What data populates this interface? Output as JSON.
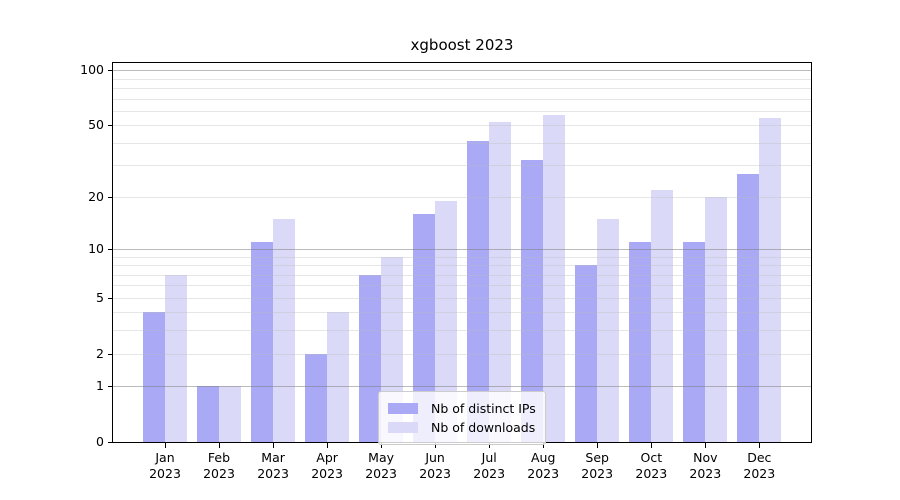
{
  "chart_data": {
    "type": "bar",
    "title": "xgboost 2023",
    "categories": [
      "Jan",
      "Feb",
      "Mar",
      "Apr",
      "May",
      "Jun",
      "Jul",
      "Aug",
      "Sep",
      "Oct",
      "Nov",
      "Dec"
    ],
    "x_tick_year": "2023",
    "series": [
      {
        "name": "Nb of distinct IPs",
        "color": "#a9a9f5",
        "values": [
          4,
          1,
          11,
          2,
          7,
          16,
          41,
          32,
          8,
          11,
          11,
          27
        ]
      },
      {
        "name": "Nb of downloads",
        "color": "#dadaf8",
        "values": [
          7,
          1,
          15,
          4,
          9,
          19,
          52,
          57,
          15,
          22,
          20,
          55
        ]
      }
    ],
    "xlabel": "",
    "ylabel": "",
    "yscale": "log1p",
    "ylim": [
      0,
      111
    ],
    "yticks": [
      0,
      1,
      2,
      5,
      10,
      20,
      50,
      100
    ],
    "grid": {
      "enabled": true,
      "major_values": [
        1,
        10,
        100
      ],
      "minor_values": [
        2,
        3,
        4,
        5,
        6,
        7,
        8,
        9,
        20,
        30,
        40,
        50,
        60,
        70,
        80,
        90
      ],
      "major_color": "rgba(125,125,125,0.52)",
      "minor_color": "rgba(190,190,190,0.38)"
    },
    "legend_position": "lower center"
  }
}
